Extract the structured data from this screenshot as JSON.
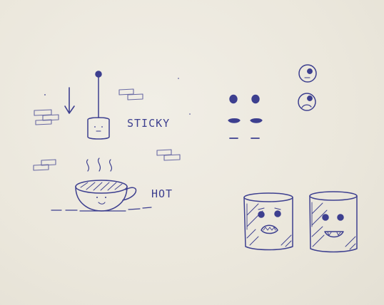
{
  "labels": {
    "sticky": "STICKY",
    "hot": "HOT"
  },
  "colors": {
    "ink": "#3d3f8f",
    "paper": "#ece8de"
  },
  "icons": [
    "down-arrow-icon",
    "brick-icon",
    "marshmallow-on-stick-icon",
    "coffee-cup-icon",
    "steam-icon",
    "eyes-and-mouth-sketch-icon",
    "neutral-face-icon",
    "sad-face-icon",
    "scared-marshmallow-icon",
    "happy-marshmallow-icon"
  ]
}
